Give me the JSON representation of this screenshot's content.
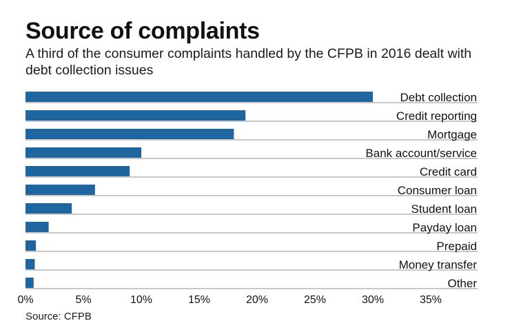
{
  "chart_data": {
    "type": "bar",
    "orientation": "horizontal",
    "title": "Source of complaints",
    "subtitle": "A third of the consumer complaints handled by the CFPB in 2016 dealt with debt collection issues",
    "source": "Source: CFPB",
    "xlabel": "",
    "ylabel": "",
    "categories": [
      "Debt collection",
      "Credit reporting",
      "Mortgage",
      "Bank account/service",
      "Credit card",
      "Consumer loan",
      "Student loan",
      "Payday loan",
      "Prepaid",
      "Money transfer",
      "Other"
    ],
    "values": [
      30,
      19,
      18,
      10,
      9,
      6,
      4,
      2,
      0.9,
      0.8,
      0.7
    ],
    "unit": "%",
    "xlim": [
      0,
      39
    ],
    "xticks": [
      0,
      5,
      10,
      15,
      20,
      25,
      30,
      35
    ],
    "xtick_labels": [
      "0%",
      "5%",
      "10%",
      "15%",
      "20%",
      "25%",
      "30%",
      "35%"
    ],
    "grid": false,
    "legend": "none",
    "bar_color": "#1f66a0",
    "row_rule_color": "#b5b5b5"
  }
}
